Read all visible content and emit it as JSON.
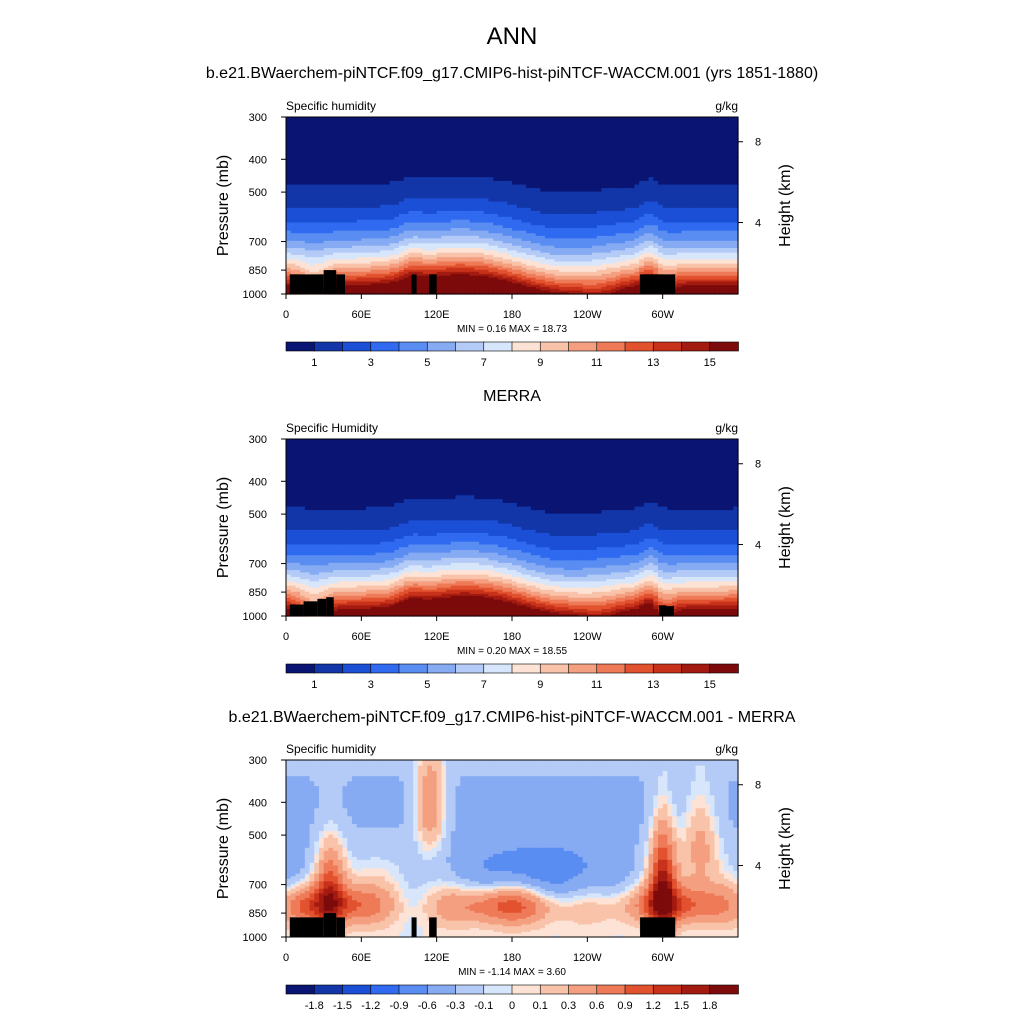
{
  "figure": {
    "season": "ANN",
    "case_title": "b.e21.BWaerchem-piNTCF.f09_g17.CMIP6-hist-piNTCF-WACCM.001 (yrs 1851-1880)",
    "obs_title": "MERRA",
    "diff_title": "b.e21.BWaerchem-piNTCF.f09_g17.CMIP6-hist-piNTCF-WACCM.001 - MERRA"
  },
  "colors": {
    "abs": [
      "#0a1573",
      "#1236a8",
      "#1b4fd6",
      "#2f6af0",
      "#5a8df2",
      "#86abf3",
      "#b3cbf6",
      "#d8e6fb",
      "#fde3d5",
      "#f9c3aa",
      "#f4a080",
      "#ee7a58",
      "#e2522f",
      "#c8321a",
      "#a31b10",
      "#7d0b0b"
    ],
    "diff": [
      "#0a1573",
      "#1236a8",
      "#1b4fd6",
      "#2f6af0",
      "#5a8df2",
      "#86abf3",
      "#b3cbf6",
      "#d8e6fb",
      "#fde3d5",
      "#f9c3aa",
      "#f4a080",
      "#ee7a58",
      "#e2522f",
      "#c8321a",
      "#a31b10",
      "#7d0b0b"
    ],
    "terrain": "#000000"
  },
  "chart_data": [
    {
      "type": "heatmap",
      "panel": "model",
      "title": "b.e21.BWaerchem-piNTCF.f09_g17.CMIP6-hist-piNTCF-WACCM.001 (yrs 1851-1880)",
      "left_label": "Specific humidity",
      "right_label": "g/kg",
      "ylabel": "Pressure (mb)",
      "ylabel_right": "Height (km)",
      "x_ticks": [
        "0",
        "60E",
        "120E",
        "180",
        "120W",
        "60W"
      ],
      "y_ticks": [
        "300",
        "400",
        "500",
        "700",
        "850",
        "1000"
      ],
      "y_right_ticks": [
        "8",
        "4"
      ],
      "xlim": [
        0,
        360
      ],
      "ylim": [
        1000,
        300
      ],
      "stats": "MIN =   0.16  MAX =  18.73",
      "min": 0.16,
      "max": 18.73,
      "colorbar_labels": [
        "1",
        "3",
        "5",
        "7",
        "9",
        "11",
        "13",
        "15"
      ],
      "longitudes": [
        0,
        10,
        20,
        30,
        40,
        50,
        60,
        70,
        80,
        90,
        100,
        110,
        120,
        130,
        140,
        150,
        160,
        170,
        180,
        190,
        200,
        210,
        220,
        230,
        240,
        250,
        260,
        270,
        280,
        290,
        300,
        310,
        320,
        330,
        340,
        350,
        360
      ],
      "pressures": [
        300,
        350,
        400,
        450,
        500,
        600,
        700,
        775,
        850,
        925,
        1000
      ]
    },
    {
      "type": "heatmap",
      "panel": "obs",
      "title": "MERRA",
      "left_label": "Specific Humidity",
      "right_label": "g/kg",
      "ylabel": "Pressure (mb)",
      "ylabel_right": "Height (km)",
      "x_ticks": [
        "0",
        "60E",
        "120E",
        "180",
        "120W",
        "60W"
      ],
      "y_ticks": [
        "300",
        "400",
        "500",
        "700",
        "850",
        "1000"
      ],
      "y_right_ticks": [
        "8",
        "4"
      ],
      "xlim": [
        0,
        360
      ],
      "ylim": [
        1000,
        300
      ],
      "stats": "MIN =   0.20  MAX =  18.55",
      "min": 0.2,
      "max": 18.55,
      "colorbar_labels": [
        "1",
        "3",
        "5",
        "7",
        "9",
        "11",
        "13",
        "15"
      ],
      "longitudes": [
        0,
        10,
        20,
        30,
        40,
        50,
        60,
        70,
        80,
        90,
        100,
        110,
        120,
        130,
        140,
        150,
        160,
        170,
        180,
        190,
        200,
        210,
        220,
        230,
        240,
        250,
        260,
        270,
        280,
        290,
        300,
        310,
        320,
        330,
        340,
        350,
        360
      ],
      "pressures": [
        300,
        350,
        400,
        450,
        500,
        600,
        700,
        775,
        850,
        925,
        1000
      ]
    },
    {
      "type": "heatmap",
      "panel": "difference",
      "title": "b.e21.BWaerchem-piNTCF.f09_g17.CMIP6-hist-piNTCF-WACCM.001 - MERRA",
      "left_label": "Specific humidity",
      "right_label": "g/kg",
      "ylabel": "Pressure (mb)",
      "ylabel_right": "Height (km)",
      "x_ticks": [
        "0",
        "60E",
        "120E",
        "180",
        "120W",
        "60W"
      ],
      "y_ticks": [
        "300",
        "400",
        "500",
        "700",
        "850",
        "1000"
      ],
      "y_right_ticks": [
        "8",
        "4"
      ],
      "xlim": [
        0,
        360
      ],
      "ylim": [
        1000,
        300
      ],
      "stats": "MIN =  -1.14  MAX =   3.60",
      "min": -1.14,
      "max": 3.6,
      "colorbar_labels": [
        "-1.8",
        "-1.5",
        "-1.2",
        "-0.9",
        "-0.6",
        "-0.3",
        "-0.1",
        "0",
        "0.1",
        "0.3",
        "0.6",
        "0.9",
        "1.2",
        "1.5",
        "1.8"
      ],
      "longitudes": [
        0,
        10,
        20,
        30,
        40,
        50,
        60,
        70,
        80,
        90,
        100,
        110,
        120,
        130,
        140,
        150,
        160,
        170,
        180,
        190,
        200,
        210,
        220,
        230,
        240,
        250,
        260,
        270,
        280,
        290,
        300,
        310,
        320,
        330,
        340,
        350,
        360
      ],
      "pressures": [
        300,
        350,
        400,
        450,
        500,
        600,
        700,
        775,
        850,
        925,
        1000
      ]
    }
  ]
}
